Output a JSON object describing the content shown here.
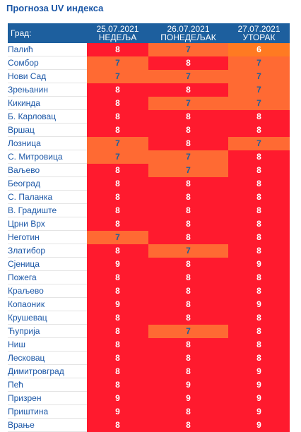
{
  "title": "Прогноза UV индекса",
  "colors": {
    "header_bg": "#1d5f9e",
    "level_7": "#ff6a33",
    "level_8": "#ff1a2e",
    "level_6": "#ff7a22",
    "level_9": "#ff1a2e"
  },
  "header": {
    "city_label": "Град:",
    "days": [
      {
        "date": "25.07.2021",
        "day": "НЕДЕЉА"
      },
      {
        "date": "26.07.2021",
        "day": "ПОНЕДЕЉАК"
      },
      {
        "date": "27.07.2021",
        "day": "УТОРАК"
      }
    ]
  },
  "rows": [
    {
      "city": "Палић",
      "values": [
        8,
        7,
        6
      ]
    },
    {
      "city": "Сомбор",
      "values": [
        7,
        8,
        7
      ]
    },
    {
      "city": "Нови Сад",
      "values": [
        7,
        7,
        7
      ]
    },
    {
      "city": "Зрењанин",
      "values": [
        8,
        8,
        7
      ]
    },
    {
      "city": "Кикинда",
      "values": [
        8,
        7,
        7
      ]
    },
    {
      "city": "Б. Карловац",
      "values": [
        8,
        8,
        8
      ]
    },
    {
      "city": "Вршац",
      "values": [
        8,
        8,
        8
      ]
    },
    {
      "city": "Лозница",
      "values": [
        7,
        8,
        7
      ]
    },
    {
      "city": "С. Митровица",
      "values": [
        7,
        7,
        8
      ]
    },
    {
      "city": "Ваљево",
      "values": [
        8,
        7,
        8
      ]
    },
    {
      "city": "Београд",
      "values": [
        8,
        8,
        8
      ]
    },
    {
      "city": "С. Паланка",
      "values": [
        8,
        8,
        8
      ]
    },
    {
      "city": "В. Градиште",
      "values": [
        8,
        8,
        8
      ]
    },
    {
      "city": "Црни Врх",
      "values": [
        8,
        8,
        8
      ]
    },
    {
      "city": "Неготин",
      "values": [
        7,
        8,
        8
      ]
    },
    {
      "city": "Златибор",
      "values": [
        8,
        7,
        8
      ]
    },
    {
      "city": "Сјеница",
      "values": [
        9,
        8,
        9
      ]
    },
    {
      "city": "Пожега",
      "values": [
        8,
        8,
        8
      ]
    },
    {
      "city": "Краљево",
      "values": [
        8,
        8,
        8
      ]
    },
    {
      "city": "Копаоник",
      "values": [
        9,
        8,
        9
      ]
    },
    {
      "city": "Крушевац",
      "values": [
        8,
        8,
        8
      ]
    },
    {
      "city": "Ћуприја",
      "values": [
        8,
        7,
        8
      ]
    },
    {
      "city": "Ниш",
      "values": [
        8,
        8,
        8
      ]
    },
    {
      "city": "Лесковац",
      "values": [
        8,
        8,
        8
      ]
    },
    {
      "city": "Димитровград",
      "values": [
        8,
        8,
        9
      ]
    },
    {
      "city": "Пећ",
      "values": [
        8,
        9,
        9
      ]
    },
    {
      "city": "Призрен",
      "values": [
        9,
        9,
        9
      ]
    },
    {
      "city": "Приштина",
      "values": [
        9,
        8,
        9
      ]
    },
    {
      "city": "Врање",
      "values": [
        8,
        8,
        9
      ]
    }
  ]
}
